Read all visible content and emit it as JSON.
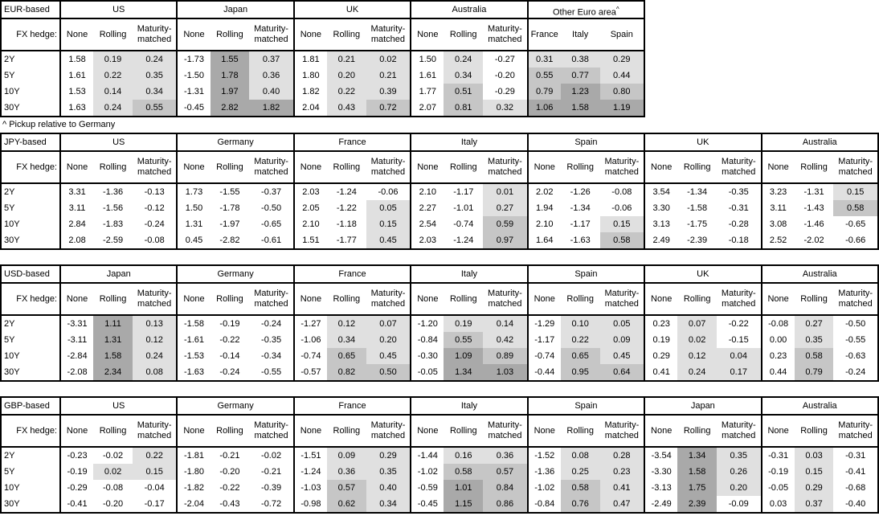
{
  "colors": {
    "border": "#000000",
    "shade_light": "#e0e0e0",
    "shade_mid": "#c6c6c6",
    "shade_dark": "#a9a9a9"
  },
  "fx_hedge_label": "FX hedge:",
  "col_headers": [
    "None",
    "Rolling",
    "Maturity-matched"
  ],
  "row_labels": [
    "2Y",
    "5Y",
    "10Y",
    "30Y"
  ],
  "footnote": "^ Pickup relative to Germany",
  "shade_rules": {
    "light_min": 0,
    "mid_min": 0.5,
    "dark_min": 1.0,
    "none_col_never_shaded": true
  },
  "tables": [
    {
      "id": "eur-based",
      "base_label": "EUR-based",
      "narrow": true,
      "groups": [
        {
          "label": "US",
          "type": "hedge",
          "rows": [
            [
              "1.58",
              "0.19",
              "0.24"
            ],
            [
              "1.61",
              "0.22",
              "0.35"
            ],
            [
              "1.53",
              "0.14",
              "0.34"
            ],
            [
              "1.63",
              "0.24",
              "0.55"
            ]
          ]
        },
        {
          "label": "Japan",
          "type": "hedge",
          "rows": [
            [
              "-1.73",
              "1.55",
              "0.37"
            ],
            [
              "-1.50",
              "1.78",
              "0.36"
            ],
            [
              "-1.31",
              "1.97",
              "0.40"
            ],
            [
              "-0.45",
              "2.82",
              "1.82"
            ]
          ]
        },
        {
          "label": "UK",
          "type": "hedge",
          "rows": [
            [
              "1.81",
              "0.21",
              "0.02"
            ],
            [
              "1.80",
              "0.20",
              "0.21"
            ],
            [
              "1.82",
              "0.22",
              "0.39"
            ],
            [
              "2.04",
              "0.43",
              "0.72"
            ]
          ]
        },
        {
          "label": "Australia",
          "type": "hedge",
          "rows": [
            [
              "1.50",
              "0.24",
              "-0.27"
            ],
            [
              "1.61",
              "0.34",
              "-0.20"
            ],
            [
              "1.77",
              "0.51",
              "-0.29"
            ],
            [
              "2.07",
              "0.81",
              "0.32"
            ]
          ]
        },
        {
          "label": "Other Euro area",
          "sup": "^",
          "type": "countries",
          "cols": [
            "France",
            "Italy",
            "Spain"
          ],
          "rows": [
            [
              "0.31",
              "0.38",
              "0.29"
            ],
            [
              "0.55",
              "0.77",
              "0.44"
            ],
            [
              "0.79",
              "1.23",
              "0.80"
            ],
            [
              "1.06",
              "1.58",
              "1.19"
            ]
          ]
        }
      ]
    },
    {
      "id": "jpy-based",
      "base_label": "JPY-based",
      "narrow": false,
      "groups": [
        {
          "label": "US",
          "type": "hedge",
          "rows": [
            [
              "3.31",
              "-1.36",
              "-0.13"
            ],
            [
              "3.11",
              "-1.56",
              "-0.12"
            ],
            [
              "2.84",
              "-1.83",
              "-0.24"
            ],
            [
              "2.08",
              "-2.59",
              "-0.08"
            ]
          ]
        },
        {
          "label": "Germany",
          "type": "hedge",
          "rows": [
            [
              "1.73",
              "-1.55",
              "-0.37"
            ],
            [
              "1.50",
              "-1.78",
              "-0.50"
            ],
            [
              "1.31",
              "-1.97",
              "-0.65"
            ],
            [
              "0.45",
              "-2.82",
              "-0.61"
            ]
          ]
        },
        {
          "label": "France",
          "type": "hedge",
          "rows": [
            [
              "2.03",
              "-1.24",
              "-0.06"
            ],
            [
              "2.05",
              "-1.22",
              "0.05"
            ],
            [
              "2.10",
              "-1.18",
              "0.15"
            ],
            [
              "1.51",
              "-1.77",
              "0.45"
            ]
          ]
        },
        {
          "label": "Italy",
          "type": "hedge",
          "rows": [
            [
              "2.10",
              "-1.17",
              "0.01"
            ],
            [
              "2.27",
              "-1.01",
              "0.27"
            ],
            [
              "2.54",
              "-0.74",
              "0.59"
            ],
            [
              "2.03",
              "-1.24",
              "0.97"
            ]
          ]
        },
        {
          "label": "Spain",
          "type": "hedge",
          "rows": [
            [
              "2.02",
              "-1.26",
              "-0.08"
            ],
            [
              "1.94",
              "-1.34",
              "-0.06"
            ],
            [
              "2.10",
              "-1.17",
              "0.15"
            ],
            [
              "1.64",
              "-1.63",
              "0.58"
            ]
          ]
        },
        {
          "label": "UK",
          "type": "hedge",
          "rows": [
            [
              "3.54",
              "-1.34",
              "-0.35"
            ],
            [
              "3.30",
              "-1.58",
              "-0.31"
            ],
            [
              "3.13",
              "-1.75",
              "-0.28"
            ],
            [
              "2.49",
              "-2.39",
              "-0.18"
            ]
          ]
        },
        {
          "label": "Australia",
          "type": "hedge",
          "rows": [
            [
              "3.23",
              "-1.31",
              "0.15"
            ],
            [
              "3.11",
              "-1.43",
              "0.58"
            ],
            [
              "3.08",
              "-1.46",
              "-0.65"
            ],
            [
              "2.52",
              "-2.02",
              "-0.66"
            ]
          ]
        }
      ]
    },
    {
      "id": "usd-based",
      "base_label": "USD-based",
      "narrow": false,
      "groups": [
        {
          "label": "Japan",
          "type": "hedge",
          "rows": [
            [
              "-3.31",
              "1.11",
              "0.13"
            ],
            [
              "-3.11",
              "1.31",
              "0.12"
            ],
            [
              "-2.84",
              "1.58",
              "0.24"
            ],
            [
              "-2.08",
              "2.34",
              "0.08"
            ]
          ]
        },
        {
          "label": "Germany",
          "type": "hedge",
          "rows": [
            [
              "-1.58",
              "-0.19",
              "-0.24"
            ],
            [
              "-1.61",
              "-0.22",
              "-0.35"
            ],
            [
              "-1.53",
              "-0.14",
              "-0.34"
            ],
            [
              "-1.63",
              "-0.24",
              "-0.55"
            ]
          ]
        },
        {
          "label": "France",
          "type": "hedge",
          "rows": [
            [
              "-1.27",
              "0.12",
              "0.07"
            ],
            [
              "-1.06",
              "0.34",
              "0.20"
            ],
            [
              "-0.74",
              "0.65",
              "0.45"
            ],
            [
              "-0.57",
              "0.82",
              "0.50"
            ]
          ]
        },
        {
          "label": "Italy",
          "type": "hedge",
          "rows": [
            [
              "-1.20",
              "0.19",
              "0.14"
            ],
            [
              "-0.84",
              "0.55",
              "0.42"
            ],
            [
              "-0.30",
              "1.09",
              "0.89"
            ],
            [
              "-0.05",
              "1.34",
              "1.03"
            ]
          ]
        },
        {
          "label": "Spain",
          "type": "hedge",
          "rows": [
            [
              "-1.29",
              "0.10",
              "0.05"
            ],
            [
              "-1.17",
              "0.22",
              "0.09"
            ],
            [
              "-0.74",
              "0.65",
              "0.45"
            ],
            [
              "-0.44",
              "0.95",
              "0.64"
            ]
          ]
        },
        {
          "label": "UK",
          "type": "hedge",
          "rows": [
            [
              "0.23",
              "0.07",
              "-0.22"
            ],
            [
              "0.19",
              "0.02",
              "-0.15"
            ],
            [
              "0.29",
              "0.12",
              "0.04"
            ],
            [
              "0.41",
              "0.24",
              "0.17"
            ]
          ]
        },
        {
          "label": "Australia",
          "type": "hedge",
          "rows": [
            [
              "-0.08",
              "0.27",
              "-0.50"
            ],
            [
              "0.00",
              "0.35",
              "-0.55"
            ],
            [
              "0.23",
              "0.58",
              "-0.63"
            ],
            [
              "0.44",
              "0.79",
              "-0.24"
            ]
          ]
        }
      ]
    },
    {
      "id": "gbp-based",
      "base_label": "GBP-based",
      "narrow": false,
      "groups": [
        {
          "label": "US",
          "type": "hedge",
          "rows": [
            [
              "-0.23",
              "-0.02",
              "0.22"
            ],
            [
              "-0.19",
              "0.02",
              "0.15"
            ],
            [
              "-0.29",
              "-0.08",
              "-0.04"
            ],
            [
              "-0.41",
              "-0.20",
              "-0.17"
            ]
          ]
        },
        {
          "label": "Germany",
          "type": "hedge",
          "rows": [
            [
              "-1.81",
              "-0.21",
              "-0.02"
            ],
            [
              "-1.80",
              "-0.20",
              "-0.21"
            ],
            [
              "-1.82",
              "-0.22",
              "-0.39"
            ],
            [
              "-2.04",
              "-0.43",
              "-0.72"
            ]
          ]
        },
        {
          "label": "France",
          "type": "hedge",
          "rows": [
            [
              "-1.51",
              "0.09",
              "0.29"
            ],
            [
              "-1.24",
              "0.36",
              "0.35"
            ],
            [
              "-1.03",
              "0.57",
              "0.40"
            ],
            [
              "-0.98",
              "0.62",
              "0.34"
            ]
          ]
        },
        {
          "label": "Italy",
          "type": "hedge",
          "rows": [
            [
              "-1.44",
              "0.16",
              "0.36"
            ],
            [
              "-1.02",
              "0.58",
              "0.57"
            ],
            [
              "-0.59",
              "1.01",
              "0.84"
            ],
            [
              "-0.45",
              "1.15",
              "0.86"
            ]
          ]
        },
        {
          "label": "Spain",
          "type": "hedge",
          "rows": [
            [
              "-1.52",
              "0.08",
              "0.28"
            ],
            [
              "-1.36",
              "0.25",
              "0.23"
            ],
            [
              "-1.02",
              "0.58",
              "0.41"
            ],
            [
              "-0.84",
              "0.76",
              "0.47"
            ]
          ]
        },
        {
          "label": "Japan",
          "type": "hedge",
          "rows": [
            [
              "-3.54",
              "1.34",
              "0.35"
            ],
            [
              "-3.30",
              "1.58",
              "0.26"
            ],
            [
              "-3.13",
              "1.75",
              "0.20"
            ],
            [
              "-2.49",
              "2.39",
              "-0.09"
            ]
          ]
        },
        {
          "label": "Australia",
          "type": "hedge",
          "rows": [
            [
              "-0.31",
              "0.03",
              "-0.31"
            ],
            [
              "-0.19",
              "0.15",
              "-0.41"
            ],
            [
              "-0.05",
              "0.29",
              "-0.68"
            ],
            [
              "0.03",
              "0.37",
              "-0.40"
            ]
          ]
        }
      ]
    }
  ]
}
